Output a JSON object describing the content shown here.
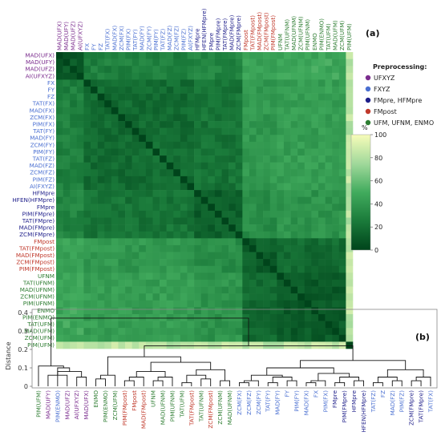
{
  "chart_data": [
    {
      "type": "heatmap",
      "panel_label": "(a)",
      "labels": [
        "MAD(UFX)",
        "MAD(UFY)",
        "MAD(UFZ)",
        "AI(UFXYZ)",
        "FX",
        "FY",
        "FZ",
        "TAT(FX)",
        "MAD(FX)",
        "ZCM(FX)",
        "PIM(FX)",
        "TAT(FY)",
        "MAD(FY)",
        "ZCM(FY)",
        "PIM(FY)",
        "TAT(FZ)",
        "MAD(FZ)",
        "ZCM(FZ)",
        "PIM(FZ)",
        "AI(FXYZ)",
        "HFMpre",
        "HFEN(HFMpre)",
        "FMpre",
        "PIM(FMpre)",
        "TAT(FMpre)",
        "MAD(FMpre)",
        "ZCM(FMpre)",
        "FMpost",
        "TAT(FMpost)",
        "MAD(FMpost)",
        "ZCM(FMpost)",
        "PIM(FMpost)",
        "UFNM",
        "TAT(UFNM)",
        "MAD(UFNM)",
        "ZCM(UFNM)",
        "PIM(UFNM)",
        "ENMO",
        "PIM(ENMO)",
        "TAT(UFM)",
        "MAD(UFM)",
        "ZCM(UFM)",
        "PIM(UFM)"
      ],
      "label_groups": [
        "UFXYZ",
        "UFXYZ",
        "UFXYZ",
        "UFXYZ",
        "FXYZ",
        "FXYZ",
        "FXYZ",
        "FXYZ",
        "FXYZ",
        "FXYZ",
        "FXYZ",
        "FXYZ",
        "FXYZ",
        "FXYZ",
        "FXYZ",
        "FXYZ",
        "FXYZ",
        "FXYZ",
        "FXYZ",
        "FXYZ",
        "FMpre, HFMpre",
        "FMpre, HFMpre",
        "FMpre, HFMpre",
        "FMpre, HFMpre",
        "FMpre, HFMpre",
        "FMpre, HFMpre",
        "FMpre, HFMpre",
        "FMpost",
        "FMpost",
        "FMpost",
        "FMpost",
        "FMpost",
        "UFM, UFNM, ENMO",
        "UFM, UFNM, ENMO",
        "UFM, UFNM, ENMO",
        "UFM, UFNM, ENMO",
        "UFM, UFNM, ENMO",
        "UFM, UFNM, ENMO",
        "UFM, UFNM, ENMO",
        "UFM, UFNM, ENMO",
        "UFM, UFNM, ENMO",
        "UFM, UFNM, ENMO",
        "UFM, UFNM, ENMO"
      ],
      "colorbar": {
        "label": "%",
        "ticks": [
          0,
          20,
          40,
          60,
          80,
          100
        ],
        "range": [
          0,
          100
        ]
      },
      "color_scale": [
        "#00441b",
        "#1a7a3a",
        "#41ab5d",
        "#a1d99b",
        "#f7fcb9"
      ],
      "block_values": {
        "comment_free": true,
        "UFXYZ": {
          "UFXYZ": 10,
          "FXYZ": 28,
          "FMpre, HFMpre": 30,
          "FMpost": 45,
          "UFM, UFNM, ENMO": 48
        },
        "FXYZ": {
          "UFXYZ": 28,
          "FXYZ": 18,
          "FMpre, HFMpre": 22,
          "FMpost": 40,
          "UFM, UFNM, ENMO": 43
        },
        "FMpre, HFMpre": {
          "UFXYZ": 30,
          "FXYZ": 22,
          "FMpre, HFMpre": 12,
          "FMpost": 35,
          "UFM, UFNM, ENMO": 38
        },
        "FMpost": {
          "UFXYZ": 45,
          "FXYZ": 40,
          "FMpre, HFMpre": 35,
          "FMpost": 12,
          "UFM, UFNM, ENMO": 18
        },
        "UFM, UFNM, ENMO": {
          "UFXYZ": 48,
          "FXYZ": 43,
          "FMpre, HFMpre": 38,
          "FMpost": 18,
          "UFM, UFNM, ENMO": 10
        }
      },
      "diagonal_value": 0,
      "last_row_value": 90,
      "legend": {
        "title": "Preprocessing:",
        "items": [
          {
            "label": "UFXYZ",
            "color": "#7b2d8e"
          },
          {
            "label": "FXYZ",
            "color": "#4a6fd1"
          },
          {
            "label": "FMpre, HFMpre",
            "color": "#1f1f8a"
          },
          {
            "label": "FMpost",
            "color": "#c0392b"
          },
          {
            "label": "UFM, UFNM, ENMO",
            "color": "#2e7d32"
          }
        ]
      },
      "group_colors": {
        "UFXYZ": "#7b2d8e",
        "FXYZ": "#4a6fd1",
        "FMpre, HFMpre": "#1f1f8a",
        "FMpost": "#c0392b",
        "UFM, UFNM, ENMO": "#2e7d32"
      }
    },
    {
      "type": "dendrogram",
      "panel_label": "(b)",
      "ylabel": "Distance",
      "ylim": [
        0,
        0.4
      ],
      "yticks": [
        0,
        0.1,
        0.2,
        0.3,
        0.4
      ],
      "leaves": [
        "PIM(UFM)",
        "MAD(UFY)",
        "PIM(ENMO)",
        "MAD(UFZ)",
        "AI(UFXYZ)",
        "MAD(UFX)",
        "ENMO",
        "PIM(ENMO)",
        "ZCM(UFM)",
        "PIM(FMpost)",
        "FMpost",
        "MAD(FMpost)",
        "UFNM",
        "MAD(UFNM)",
        "PIM(UFNM)",
        "TAT(UFM)",
        "TAT(FMpost)",
        "TAT(UFNM)",
        "ZCM(FMpost)",
        "ZCM(UFNM)",
        "MAD(UFNM)",
        "ZCM(FX)",
        "ZCM(FZ)",
        "ZCM(FY)",
        "TAT(FY)",
        "MAD(FY)",
        "FY",
        "PIM(FY)",
        "MAD(FX)",
        "FX",
        "PIM(FX)",
        "FMpre",
        "PIM(FMpre)",
        "HFMpre",
        "HFEN(HFMpre)",
        "TAT(FZ)",
        "FZ",
        "MAD(FZ)",
        "PIM(FZ)",
        "ZCM(FMpre)",
        "TAT(FMpre)",
        "TAT(FX)"
      ],
      "leaf_groups": [
        "UFM, UFNM, ENMO",
        "UFXYZ",
        "FXYZ",
        "UFXYZ",
        "UFXYZ",
        "UFXYZ",
        "UFM, UFNM, ENMO",
        "UFM, UFNM, ENMO",
        "UFM, UFNM, ENMO",
        "FMpost",
        "FMpost",
        "FMpost",
        "UFM, UFNM, ENMO",
        "UFM, UFNM, ENMO",
        "UFM, UFNM, ENMO",
        "UFM, UFNM, ENMO",
        "FMpost",
        "UFM, UFNM, ENMO",
        "FMpost",
        "UFM, UFNM, ENMO",
        "UFM, UFNM, ENMO",
        "FXYZ",
        "FXYZ",
        "FXYZ",
        "FXYZ",
        "FXYZ",
        "FXYZ",
        "FXYZ",
        "FXYZ",
        "FXYZ",
        "FXYZ",
        "FMpre, HFMpre",
        "FMpre, HFMpre",
        "FMpre, HFMpre",
        "FMpre, HFMpre",
        "FXYZ",
        "FXYZ",
        "FXYZ",
        "FXYZ",
        "FMpre, HFMpre",
        "FMpre, HFMpre",
        "FXYZ"
      ],
      "merges": [
        {
          "a": 1,
          "b": 3,
          "h": 0.06
        },
        {
          "a": 4,
          "b": 5,
          "h": 0.05
        },
        {
          "a": 2,
          "b": "m1",
          "h": 0.08
        },
        {
          "a": "m0",
          "b": "m2",
          "h": 0.1
        },
        {
          "a": 0,
          "b": "m3",
          "h": 0.11
        },
        {
          "a": 6,
          "b": 7,
          "h": 0.04
        },
        {
          "a": 8,
          "b": "m5",
          "h": 0.06
        },
        {
          "a": 9,
          "b": 10,
          "h": 0.03
        },
        {
          "a": 11,
          "b": "m7",
          "h": 0.05
        },
        {
          "a": 12,
          "b": 13,
          "h": 0.03
        },
        {
          "a": 14,
          "b": "m9",
          "h": 0.05
        },
        {
          "a": "m8",
          "b": "m10",
          "h": 0.08
        },
        {
          "a": 15,
          "b": 16,
          "h": 0.02
        },
        {
          "a": 17,
          "b": 18,
          "h": 0.04
        },
        {
          "a": "m12",
          "b": "m13",
          "h": 0.06
        },
        {
          "a": 19,
          "b": 20,
          "h": 0.03
        },
        {
          "a": "m14",
          "b": "m15",
          "h": 0.09
        },
        {
          "a": "m11",
          "b": "m16",
          "h": 0.13
        },
        {
          "a": "m6",
          "b": "m17",
          "h": 0.16
        },
        {
          "a": 21,
          "b": 22,
          "h": 0.02
        },
        {
          "a": 23,
          "b": "m19",
          "h": 0.03
        },
        {
          "a": 24,
          "b": 25,
          "h": 0.02
        },
        {
          "a": 26,
          "b": 27,
          "h": 0.03
        },
        {
          "a": "m21",
          "b": "m22",
          "h": 0.05
        },
        {
          "a": "m20",
          "b": "m23",
          "h": 0.06
        },
        {
          "a": 28,
          "b": 29,
          "h": 0.02
        },
        {
          "a": 30,
          "b": "m25",
          "h": 0.03
        },
        {
          "a": 31,
          "b": 32,
          "h": 0.02
        },
        {
          "a": 33,
          "b": 34,
          "h": 0.03
        },
        {
          "a": "m27",
          "b": "m28",
          "h": 0.05
        },
        {
          "a": "m26",
          "b": "m29",
          "h": 0.07
        },
        {
          "a": "m24",
          "b": "m30",
          "h": 0.1
        },
        {
          "a": 35,
          "b": 36,
          "h": 0.02
        },
        {
          "a": 37,
          "b": 38,
          "h": 0.03
        },
        {
          "a": "m32",
          "b": "m33",
          "h": 0.05
        },
        {
          "a": 39,
          "b": 40,
          "h": 0.03
        },
        {
          "a": "m35",
          "b": 41,
          "h": 0.05
        },
        {
          "a": "m34",
          "b": "m36",
          "h": 0.09
        },
        {
          "a": "m31",
          "b": "m37",
          "h": 0.14
        },
        {
          "a": "m18",
          "b": "m38",
          "h": 0.22
        },
        {
          "a": "m4",
          "b": "m39",
          "h": 0.37
        }
      ]
    }
  ]
}
